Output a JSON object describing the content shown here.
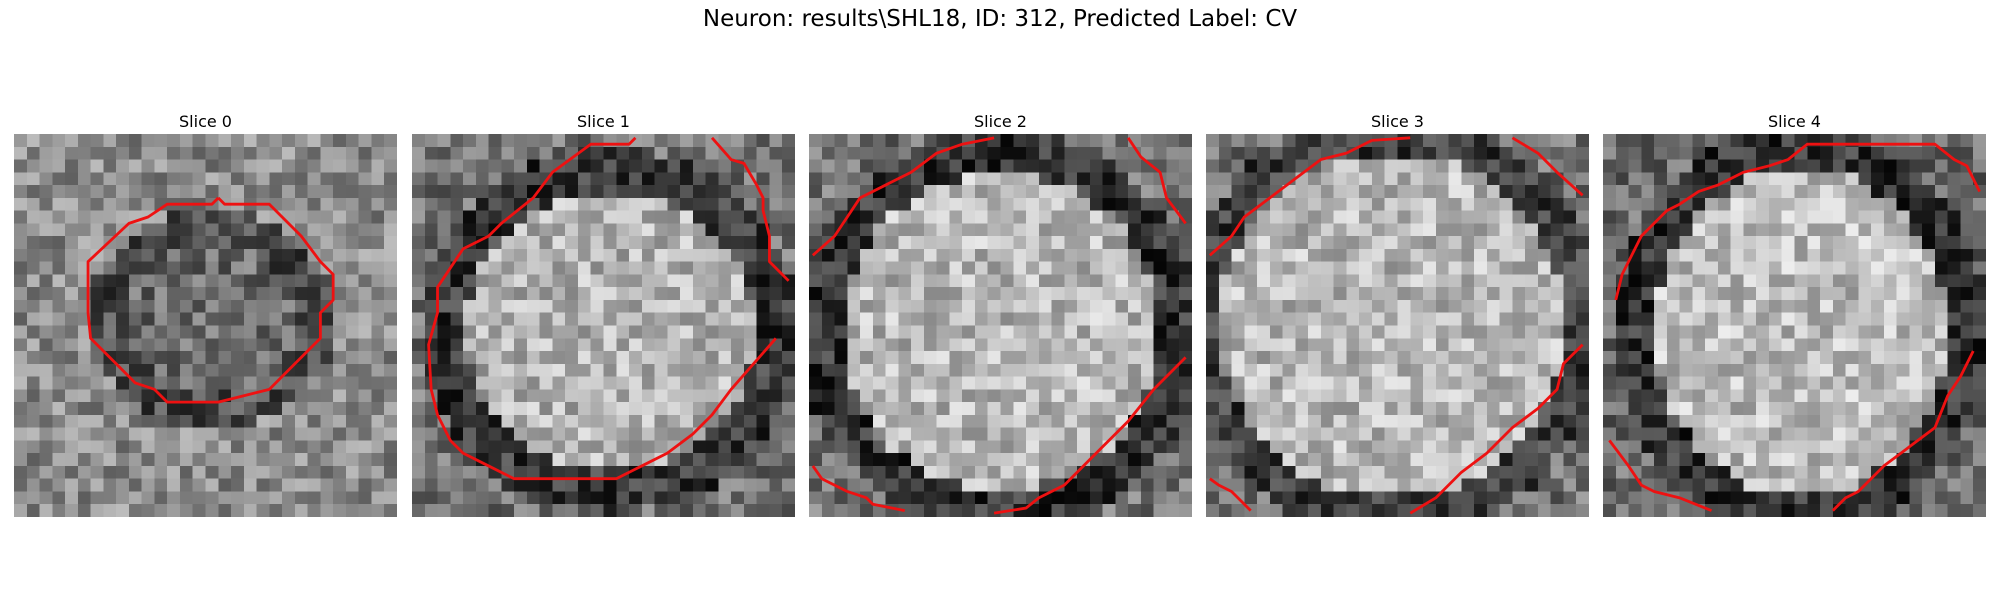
{
  "figure": {
    "title": "Neuron: results\\SHL18, ID: 312, Predicted Label: CV"
  },
  "panels": [
    {
      "title": "Slice 0"
    },
    {
      "title": "Slice 1"
    },
    {
      "title": "Slice 2"
    },
    {
      "title": "Slice 3"
    },
    {
      "title": "Slice 4"
    }
  ],
  "colors": {
    "contour": "#ee1111",
    "background": "#ffffff"
  }
}
